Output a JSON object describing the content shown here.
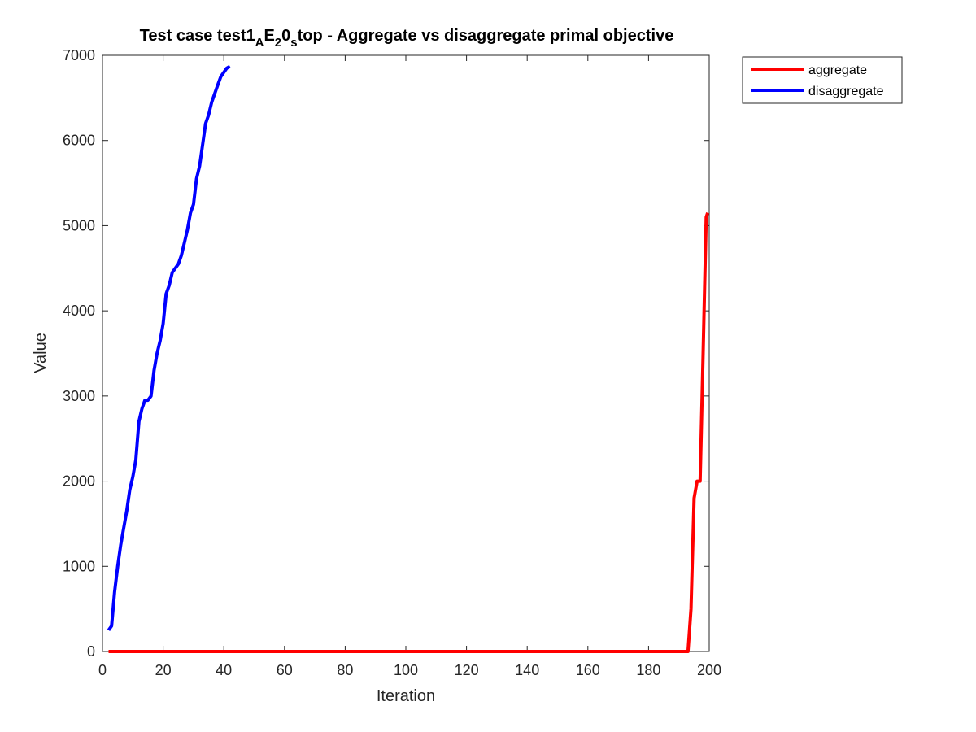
{
  "chart_data": {
    "type": "line",
    "title": {
      "parts": [
        {
          "text": "Test case test1",
          "sub": false
        },
        {
          "text": "A",
          "sub": true
        },
        {
          "text": "E",
          "sub": false
        },
        {
          "text": "2",
          "sub": true
        },
        {
          "text": "0",
          "sub": false
        },
        {
          "text": "s",
          "sub": true
        },
        {
          "text": "top - Aggregate vs disaggregate primal objective",
          "sub": false
        }
      ]
    },
    "xlabel": "Iteration",
    "ylabel": "Value",
    "xlim": [
      0,
      200
    ],
    "ylim": [
      0,
      7000
    ],
    "xticks": [
      0,
      20,
      40,
      60,
      80,
      100,
      120,
      140,
      160,
      180,
      200
    ],
    "yticks": [
      0,
      1000,
      2000,
      3000,
      4000,
      5000,
      6000,
      7000
    ],
    "grid": false,
    "legend_position": "outside-top-right",
    "series": [
      {
        "name": "aggregate",
        "color": "#ff0000",
        "points": [
          [
            2,
            0
          ],
          [
            50,
            0
          ],
          [
            100,
            0
          ],
          [
            150,
            0
          ],
          [
            192,
            0
          ],
          [
            193,
            0
          ],
          [
            194,
            500
          ],
          [
            195,
            1800
          ],
          [
            196,
            2000
          ],
          [
            197,
            2000
          ],
          [
            198,
            3500
          ],
          [
            199,
            5100
          ],
          [
            199.5,
            5150
          ]
        ]
      },
      {
        "name": "disaggregate",
        "color": "#0000ff",
        "points": [
          [
            2,
            250
          ],
          [
            3,
            300
          ],
          [
            4,
            700
          ],
          [
            5,
            1000
          ],
          [
            6,
            1250
          ],
          [
            7,
            1450
          ],
          [
            8,
            1650
          ],
          [
            9,
            1900
          ],
          [
            10,
            2050
          ],
          [
            11,
            2250
          ],
          [
            12,
            2700
          ],
          [
            13,
            2850
          ],
          [
            14,
            2950
          ],
          [
            15,
            2950
          ],
          [
            16,
            3000
          ],
          [
            17,
            3300
          ],
          [
            18,
            3500
          ],
          [
            19,
            3650
          ],
          [
            20,
            3850
          ],
          [
            21,
            4200
          ],
          [
            22,
            4300
          ],
          [
            23,
            4450
          ],
          [
            24,
            4500
          ],
          [
            25,
            4550
          ],
          [
            26,
            4650
          ],
          [
            27,
            4800
          ],
          [
            28,
            4950
          ],
          [
            29,
            5150
          ],
          [
            30,
            5250
          ],
          [
            31,
            5550
          ],
          [
            32,
            5700
          ],
          [
            33,
            5950
          ],
          [
            34,
            6200
          ],
          [
            35,
            6300
          ],
          [
            36,
            6450
          ],
          [
            37,
            6550
          ],
          [
            38,
            6650
          ],
          [
            39,
            6750
          ],
          [
            40,
            6800
          ],
          [
            41,
            6850
          ],
          [
            42,
            6870
          ]
        ]
      }
    ]
  }
}
